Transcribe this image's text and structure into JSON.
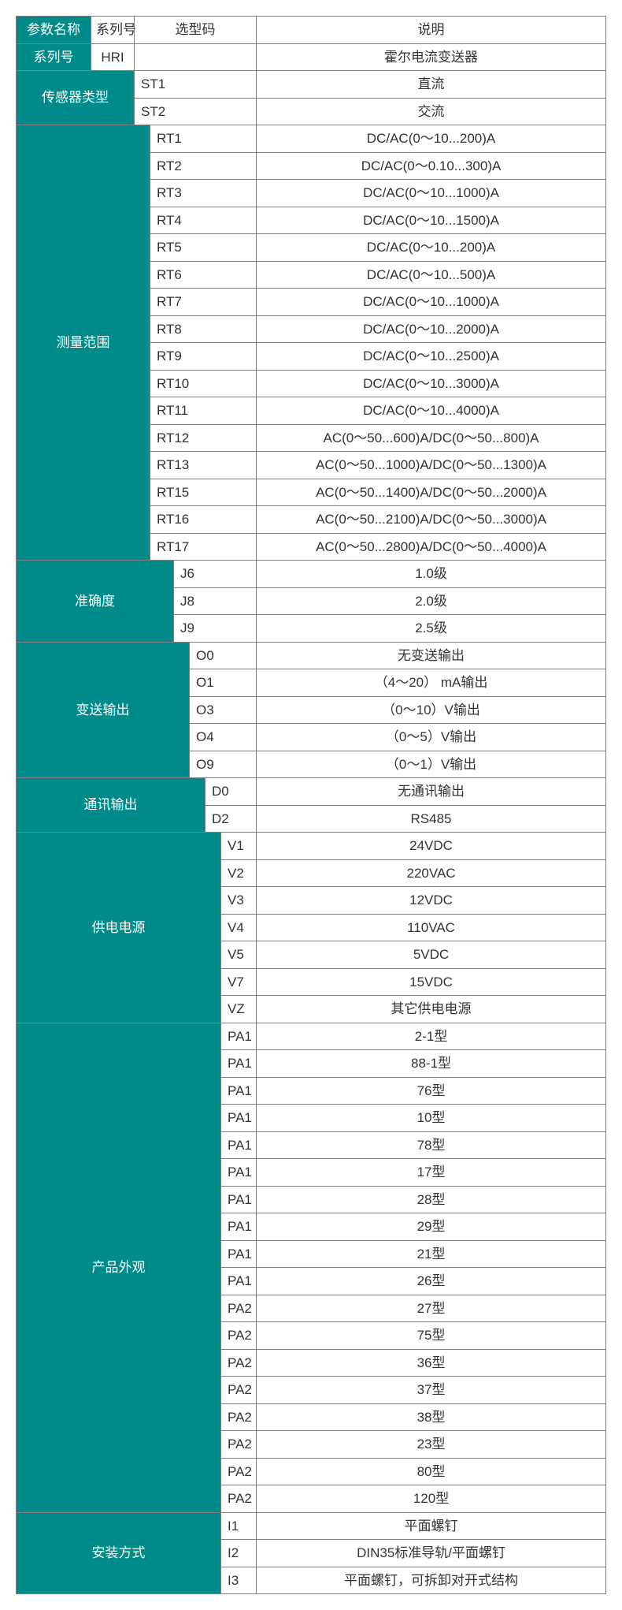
{
  "colors": {
    "teal": "#008b8b",
    "border": "#808080",
    "text": "#333333",
    "bg": "#ffffff"
  },
  "header": {
    "param": "参数名称",
    "series": "系列号",
    "code": "选型码",
    "desc": "说明"
  },
  "seriesRow": {
    "label": "系列号",
    "value": "HRI",
    "desc": "霍尔电流变送器"
  },
  "sensorType": {
    "label": "传感器类型",
    "rows": [
      {
        "code": "ST1",
        "desc": "直流"
      },
      {
        "code": "ST2",
        "desc": "交流"
      }
    ]
  },
  "range": {
    "label": "测量范围",
    "rows": [
      {
        "code": "RT1",
        "desc": "DC/AC(0～10...200)A"
      },
      {
        "code": "RT2",
        "desc": "DC/AC(0～0.10...300)A"
      },
      {
        "code": "RT3",
        "desc": "DC/AC(0～10...1000)A"
      },
      {
        "code": "RT4",
        "desc": "DC/AC(0～10...1500)A"
      },
      {
        "code": "RT5",
        "desc": "DC/AC(0～10...200)A"
      },
      {
        "code": "RT6",
        "desc": "DC/AC(0～10...500)A"
      },
      {
        "code": "RT7",
        "desc": "DC/AC(0～10...1000)A"
      },
      {
        "code": "RT8",
        "desc": "DC/AC(0～10...2000)A"
      },
      {
        "code": "RT9",
        "desc": "DC/AC(0～10...2500)A"
      },
      {
        "code": "RT10",
        "desc": "DC/AC(0～10...3000)A"
      },
      {
        "code": "RT11",
        "desc": "DC/AC(0～10...4000)A"
      },
      {
        "code": "RT12",
        "desc": "AC(0～50...600)A/DC(0～50...800)A"
      },
      {
        "code": "RT13",
        "desc": "AC(0～50...1000)A/DC(0～50...1300)A"
      },
      {
        "code": "RT15",
        "desc": "AC(0～50...1400)A/DC(0～50...2000)A"
      },
      {
        "code": "RT16",
        "desc": "AC(0～50...2100)A/DC(0～50...3000)A"
      },
      {
        "code": "RT17",
        "desc": "AC(0～50...2800)A/DC(0～50...4000)A"
      }
    ]
  },
  "accuracy": {
    "label": "准确度",
    "rows": [
      {
        "code": "J6",
        "desc": "1.0级"
      },
      {
        "code": "J8",
        "desc": "2.0级"
      },
      {
        "code": "J9",
        "desc": "2.5级"
      }
    ]
  },
  "output": {
    "label": "变送输出",
    "rows": [
      {
        "code": "O0",
        "desc": "无变送输出"
      },
      {
        "code": "O1",
        "desc": "（4～20） mA输出"
      },
      {
        "code": "O3",
        "desc": "（0～10）V输出"
      },
      {
        "code": "O4",
        "desc": "（0～5）V输出"
      },
      {
        "code": "O9",
        "desc": "（0～1）V输出"
      }
    ]
  },
  "comm": {
    "label": "通讯输出",
    "rows": [
      {
        "code": "D0",
        "desc": "无通讯输出"
      },
      {
        "code": "D2",
        "desc": "RS485"
      }
    ]
  },
  "power": {
    "label": "供电电源",
    "rows": [
      {
        "code": "V1",
        "desc": "24VDC"
      },
      {
        "code": "V2",
        "desc": "220VAC"
      },
      {
        "code": "V3",
        "desc": "12VDC"
      },
      {
        "code": "V4",
        "desc": "110VAC"
      },
      {
        "code": "V5",
        "desc": "5VDC"
      },
      {
        "code": "V7",
        "desc": "15VDC"
      },
      {
        "code": "VZ",
        "desc": "其它供电电源"
      }
    ]
  },
  "appearance": {
    "label": "产品外观",
    "rows": [
      {
        "code": "PA1",
        "desc": "2-1型"
      },
      {
        "code": "PA1",
        "desc": "88-1型"
      },
      {
        "code": "PA1",
        "desc": "76型"
      },
      {
        "code": "PA1",
        "desc": "10型"
      },
      {
        "code": "PA1",
        "desc": "78型"
      },
      {
        "code": "PA1",
        "desc": "17型"
      },
      {
        "code": "PA1",
        "desc": "28型"
      },
      {
        "code": "PA1",
        "desc": "29型"
      },
      {
        "code": "PA1",
        "desc": "21型"
      },
      {
        "code": "PA1",
        "desc": "26型"
      },
      {
        "code": "PA2",
        "desc": "27型"
      },
      {
        "code": "PA2",
        "desc": "75型"
      },
      {
        "code": "PA2",
        "desc": "36型"
      },
      {
        "code": "PA2",
        "desc": "37型"
      },
      {
        "code": "PA2",
        "desc": "38型"
      },
      {
        "code": "PA2",
        "desc": "23型"
      },
      {
        "code": "PA2",
        "desc": "80型"
      },
      {
        "code": "PA2",
        "desc": "120型"
      }
    ]
  },
  "install": {
    "label": "安装方式",
    "rows": [
      {
        "code": "I1",
        "desc": "平面螺钉"
      },
      {
        "code": "I2",
        "desc": "DIN35标准导轨/平面螺钉"
      },
      {
        "code": "I3",
        "desc": "平面螺钉，可拆卸对开式结构"
      }
    ]
  }
}
